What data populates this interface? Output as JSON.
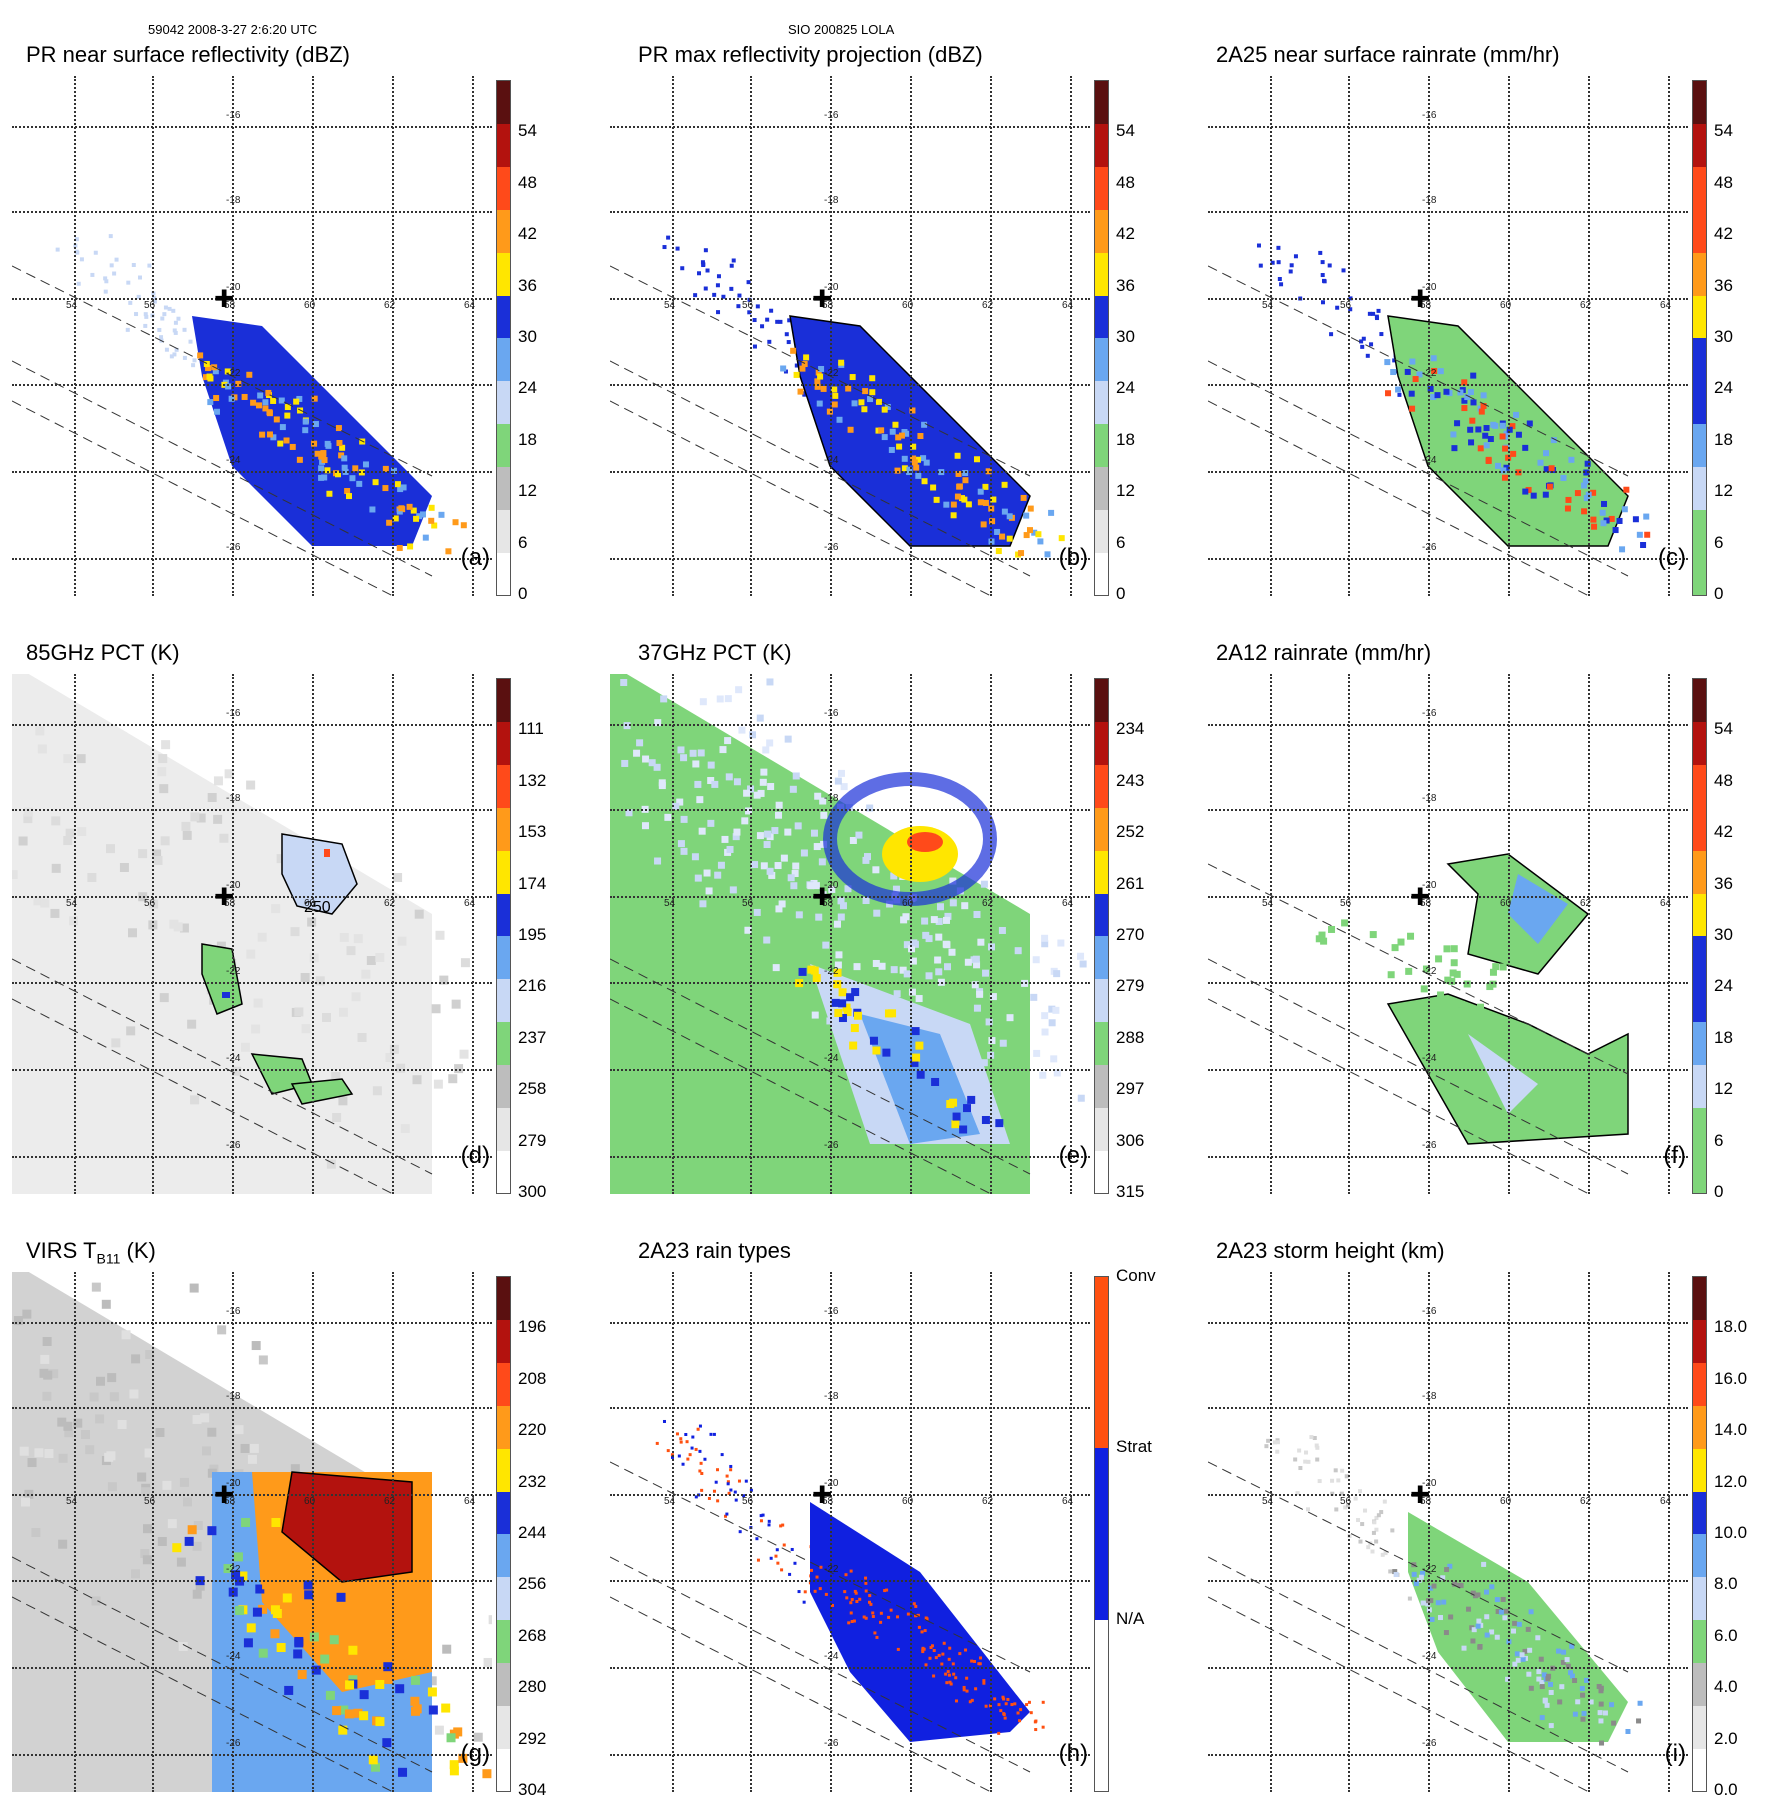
{
  "header": {
    "left": "59042 2008-3-27 2:6:20 UTC",
    "center": "SIO 200825 LOLA"
  },
  "chart_data": [
    {
      "type": "heatmap",
      "id": "a",
      "title": "PR near surface reflectivity (dBZ)",
      "label": "(a)",
      "colorbar": [
        "0",
        "6",
        "12",
        "18",
        "24",
        "30",
        "36",
        "42",
        "48",
        "54"
      ],
      "lon_ticks": [
        "54",
        "56",
        "58",
        "60",
        "62",
        "64"
      ],
      "lat_ticks": [
        "-16",
        "-18",
        "-20",
        "-22",
        "-24",
        "-26"
      ]
    },
    {
      "type": "heatmap",
      "id": "b",
      "title": "PR max reflectivity projection (dBZ)",
      "label": "(b)",
      "colorbar": [
        "0",
        "6",
        "12",
        "18",
        "24",
        "30",
        "36",
        "42",
        "48",
        "54"
      ],
      "lon_ticks": [
        "54",
        "56",
        "58",
        "60",
        "62",
        "64"
      ],
      "lat_ticks": [
        "-16",
        "-18",
        "-20",
        "-22",
        "-24",
        "-26"
      ]
    },
    {
      "type": "heatmap",
      "id": "c",
      "title": "2A25 near surface rainrate (mm/hr)",
      "label": "(c)",
      "colorbar": [
        "0",
        "6",
        "12",
        "18",
        "24",
        "30",
        "36",
        "42",
        "48",
        "54"
      ],
      "lon_ticks": [
        "54",
        "56",
        "58",
        "60",
        "62",
        "64"
      ],
      "lat_ticks": [
        "-16",
        "-18",
        "-20",
        "-22",
        "-24",
        "-26"
      ]
    },
    {
      "type": "heatmap",
      "id": "d",
      "title": "85GHz PCT (K)",
      "label": "(d)",
      "colorbar": [
        "300",
        "279",
        "258",
        "237",
        "216",
        "195",
        "174",
        "153",
        "132",
        "111"
      ],
      "contour_label": "250",
      "lon_ticks": [
        "54",
        "56",
        "58",
        "60",
        "62",
        "64"
      ],
      "lat_ticks": [
        "-16",
        "-18",
        "-20",
        "-22",
        "-24",
        "-26"
      ]
    },
    {
      "type": "heatmap",
      "id": "e",
      "title": "37GHz PCT (K)",
      "label": "(e)",
      "colorbar": [
        "315",
        "306",
        "297",
        "288",
        "279",
        "270",
        "261",
        "252",
        "243",
        "234"
      ],
      "lon_ticks": [
        "54",
        "56",
        "58",
        "60",
        "62",
        "64"
      ],
      "lat_ticks": [
        "-16",
        "-18",
        "-20",
        "-22",
        "-24",
        "-26"
      ]
    },
    {
      "type": "heatmap",
      "id": "f",
      "title": "2A12 rainrate (mm/hr)",
      "label": "(f)",
      "colorbar": [
        "0",
        "6",
        "12",
        "18",
        "24",
        "30",
        "36",
        "42",
        "48",
        "54"
      ],
      "lon_ticks": [
        "54",
        "56",
        "58",
        "60",
        "62",
        "64"
      ],
      "lat_ticks": [
        "-16",
        "-18",
        "-20",
        "-22",
        "-24",
        "-26"
      ]
    },
    {
      "type": "heatmap",
      "id": "g",
      "title": "VIRS T",
      "title_sub": "B11",
      "title_tail": " (K)",
      "label": "(g)",
      "colorbar": [
        "304",
        "292",
        "280",
        "268",
        "256",
        "244",
        "232",
        "220",
        "208",
        "196"
      ],
      "lon_ticks": [
        "54",
        "56",
        "58",
        "60",
        "62",
        "64"
      ],
      "lat_ticks": [
        "-16",
        "-18",
        "-20",
        "-22",
        "-24",
        "-26"
      ]
    },
    {
      "type": "heatmap",
      "id": "h",
      "title": "2A23 rain types",
      "label": "(h)",
      "colorbar": [
        "N/A",
        "Strat",
        "Conv"
      ],
      "lon_ticks": [
        "54",
        "56",
        "58",
        "60",
        "62",
        "64"
      ],
      "lat_ticks": [
        "-16",
        "-18",
        "-20",
        "-22",
        "-24",
        "-26"
      ]
    },
    {
      "type": "heatmap",
      "id": "i",
      "title": "2A23 storm height (km)",
      "label": "(i)",
      "colorbar": [
        "0.0",
        "2.0",
        "4.0",
        "6.0",
        "8.0",
        "10.0",
        "12.0",
        "14.0",
        "16.0",
        "18.0"
      ],
      "lon_ticks": [
        "54",
        "56",
        "58",
        "60",
        "62",
        "64"
      ],
      "lat_ticks": [
        "-16",
        "-18",
        "-20",
        "-22",
        "-24",
        "-26"
      ]
    }
  ],
  "colors": {
    "scale10": [
      "#ffffff",
      "#e6e6e6",
      "#bdbdbd",
      "#7fd57a",
      "#c8d8f5",
      "#6aa7f0",
      "#1a2fd8",
      "#ffe600",
      "#ff9a1a",
      "#ff4a1a",
      "#b3120e",
      "#5a1010"
    ],
    "rain_types": [
      "#ffffff",
      "#1020e0",
      "#ff5010"
    ]
  }
}
